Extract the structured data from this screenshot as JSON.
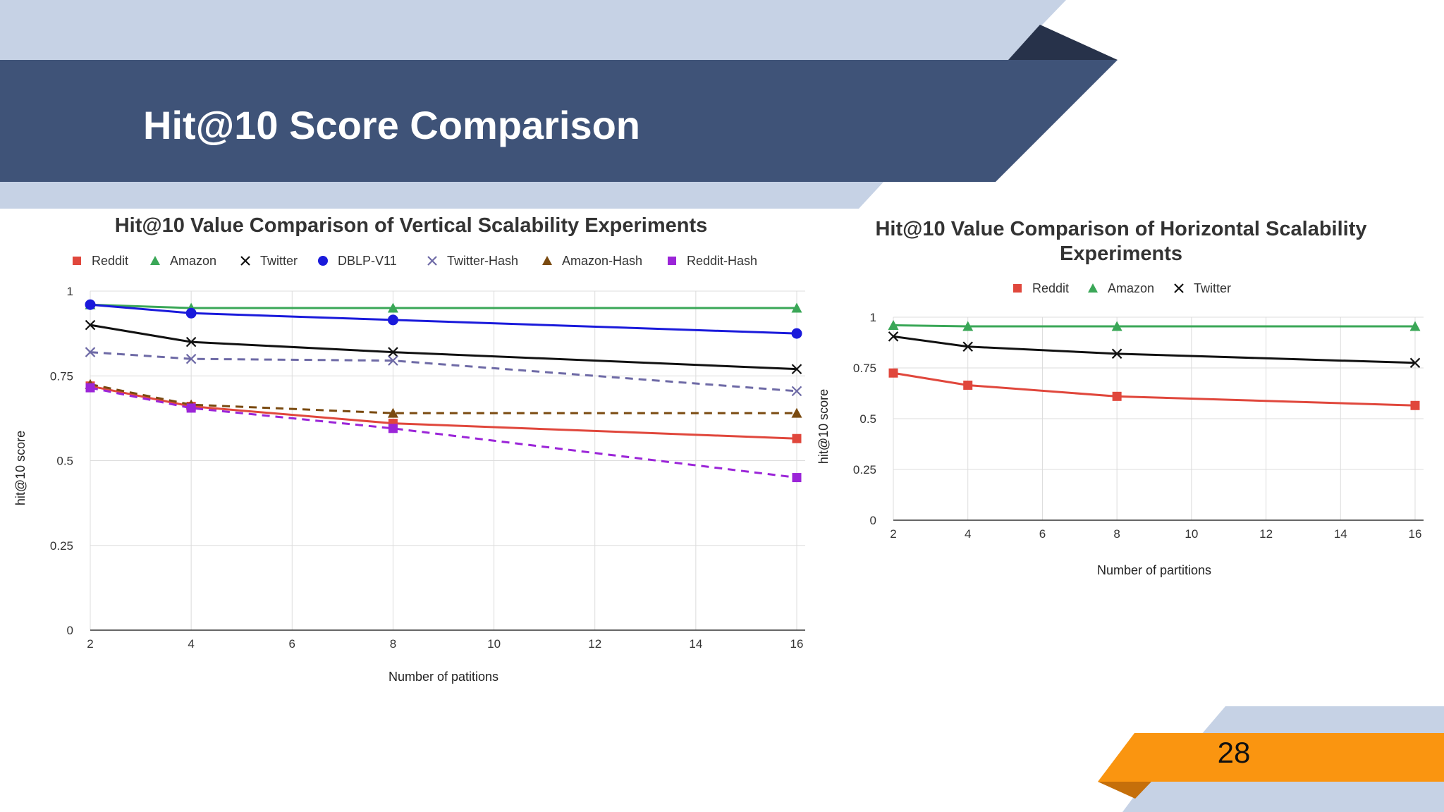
{
  "slide": {
    "title": "Hit@10 Score Comparison",
    "page_number": "28",
    "colors": {
      "navy": "#3f5378",
      "navy_dark": "#27324a",
      "light_blue": "#c6d2e5",
      "orange": "#fa9510",
      "orange_dark": "#c56f0a"
    }
  },
  "chart_data": [
    {
      "type": "line",
      "title": "Hit@10 Value Comparison of Vertical Scalability Experiments",
      "xlabel": "Number of patitions",
      "ylabel": "hit@10 score",
      "x": [
        2,
        4,
        8,
        16
      ],
      "xlim": [
        2,
        16
      ],
      "ylim": [
        0,
        1
      ],
      "xticks": [
        2,
        4,
        6,
        8,
        10,
        12,
        14,
        16
      ],
      "yticks": [
        0,
        0.25,
        0.5,
        0.75,
        1
      ],
      "ytick_labels": [
        "0",
        "0.25",
        "0.5",
        "0.75",
        "1"
      ],
      "grid": true,
      "legend_position": "top",
      "series": [
        {
          "name": "Reddit",
          "values": [
            0.72,
            0.66,
            0.61,
            0.565
          ],
          "color": "#e0473c",
          "marker": "square",
          "dashed": false
        },
        {
          "name": "Amazon",
          "values": [
            0.96,
            0.95,
            0.95,
            0.95
          ],
          "color": "#3aa757",
          "marker": "triangle",
          "dashed": false
        },
        {
          "name": "Twitter",
          "values": [
            0.9,
            0.85,
            0.82,
            0.77
          ],
          "color": "#111111",
          "marker": "x",
          "dashed": false
        },
        {
          "name": "DBLP-V11",
          "values": [
            0.96,
            0.935,
            0.915,
            0.875
          ],
          "color": "#1a1adb",
          "marker": "circle",
          "dashed": false
        },
        {
          "name": "Twitter-Hash",
          "values": [
            0.82,
            0.8,
            0.795,
            0.705
          ],
          "color": "#6e6aa6",
          "marker": "x",
          "dashed": true
        },
        {
          "name": "Amazon-Hash",
          "values": [
            0.725,
            0.665,
            0.64,
            0.64
          ],
          "color": "#7a4a10",
          "marker": "triangle",
          "dashed": true
        },
        {
          "name": "Reddit-Hash",
          "values": [
            0.715,
            0.655,
            0.595,
            0.45
          ],
          "color": "#9b25d8",
          "marker": "square",
          "dashed": true
        }
      ]
    },
    {
      "type": "line",
      "title": "Hit@10 Value Comparison of Horizontal Scalability Experiments",
      "title_lines": [
        "Hit@10 Value Comparison of Horizontal Scalability",
        "Experiments"
      ],
      "xlabel": "Number of partitions",
      "ylabel": "hit@10  score",
      "x": [
        2,
        4,
        8,
        16
      ],
      "xlim": [
        2,
        16
      ],
      "ylim": [
        0,
        1
      ],
      "xticks": [
        2,
        4,
        6,
        8,
        10,
        12,
        14,
        16
      ],
      "yticks": [
        0,
        0.25,
        0.5,
        0.75,
        1
      ],
      "ytick_labels": [
        "0",
        "0.25",
        "0.5",
        "0.75",
        "1"
      ],
      "grid": true,
      "legend_position": "top",
      "series": [
        {
          "name": "Reddit",
          "values": [
            0.725,
            0.665,
            0.61,
            0.565
          ],
          "color": "#e0473c",
          "marker": "square",
          "dashed": false
        },
        {
          "name": "Amazon",
          "values": [
            0.96,
            0.955,
            0.955,
            0.955
          ],
          "color": "#3aa757",
          "marker": "triangle",
          "dashed": false
        },
        {
          "name": "Twitter",
          "values": [
            0.905,
            0.855,
            0.82,
            0.775
          ],
          "color": "#111111",
          "marker": "x",
          "dashed": false
        }
      ]
    }
  ]
}
